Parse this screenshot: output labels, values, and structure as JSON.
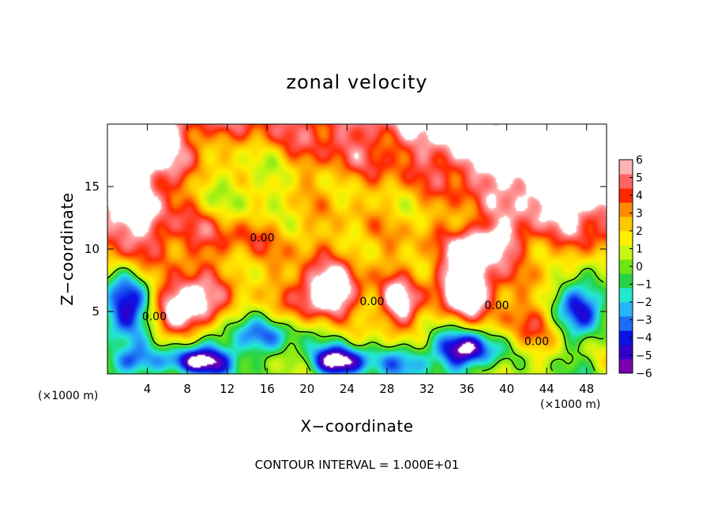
{
  "chart_data": {
    "type": "heatmap",
    "title": "zonal velocity",
    "xlabel": "X−coordinate",
    "ylabel": "Z−coordinate",
    "x_unit_left": "(×1000 m)",
    "x_unit_right": "(×1000 m)",
    "footnote": "CONTOUR INTERVAL = 1.000E+01",
    "xlim": [
      0,
      50
    ],
    "ylim": [
      0,
      20
    ],
    "x_ticks": [
      4,
      8,
      12,
      16,
      20,
      24,
      28,
      32,
      36,
      40,
      44,
      48
    ],
    "x_tick_labels": [
      "4",
      "8",
      "12",
      "16",
      "20",
      "24",
      "28",
      "32",
      "36",
      "40",
      "44",
      "48"
    ],
    "y_ticks": [
      5,
      10,
      15
    ],
    "y_tick_labels": [
      "5",
      "10",
      "15"
    ],
    "colorbar": {
      "min": -6,
      "max": 6,
      "ticks": [
        6,
        5,
        4,
        3,
        2,
        1,
        0,
        -1,
        -2,
        -3,
        -4,
        -5,
        -6
      ],
      "tick_labels": [
        "6",
        "5",
        "4",
        "3",
        "2",
        "1",
        "0",
        "−1",
        "−2",
        "−3",
        "−4",
        "−5",
        "−6"
      ],
      "colors": [
        "#7a00b0",
        "#3000c8",
        "#0a14e6",
        "#1e6ef5",
        "#28b4f5",
        "#23e8d2",
        "#28d246",
        "#6ee614",
        "#c8f514",
        "#fff000",
        "#ffc800",
        "#ff8c00",
        "#ff2800",
        "#ff6464",
        "#ffb4b4"
      ]
    },
    "contour_labels": [
      "0.00",
      "0.00",
      "0.00",
      "0.00",
      "0.00"
    ],
    "blobs": [
      {
        "x": 2,
        "y": 17.5,
        "sx": 5,
        "sy": 3,
        "v": 4
      },
      {
        "x": 2,
        "y": 13,
        "sx": 4,
        "sy": 3,
        "v": 4
      },
      {
        "x": 46,
        "y": 15,
        "sx": 7,
        "sy": 3.5,
        "v": 5
      },
      {
        "x": 48,
        "y": 19,
        "sx": 6,
        "sy": 2,
        "v": 4
      },
      {
        "x": 37,
        "y": 18,
        "sx": 5,
        "sy": 3,
        "v": 2
      },
      {
        "x": 14,
        "y": 16,
        "sx": 6,
        "sy": 4,
        "v": -3
      },
      {
        "x": 26,
        "y": 14,
        "sx": 8,
        "sy": 3,
        "v": -1.5
      },
      {
        "x": 10,
        "y": 11,
        "sx": 6,
        "sy": 2,
        "v": 2
      },
      {
        "x": 38,
        "y": 10.5,
        "sx": 3,
        "sy": 1.5,
        "v": 5
      },
      {
        "x": 2,
        "y": 5.5,
        "sx": 3,
        "sy": 2.5,
        "v": -7
      },
      {
        "x": 8,
        "y": 5.5,
        "sx": 3.5,
        "sy": 2,
        "v": 7
      },
      {
        "x": 22,
        "y": 6.5,
        "sx": 3,
        "sy": 2,
        "v": 7
      },
      {
        "x": 29,
        "y": 5.5,
        "sx": 2,
        "sy": 2,
        "v": 5
      },
      {
        "x": 36,
        "y": 7,
        "sx": 3,
        "sy": 2.5,
        "v": 7
      },
      {
        "x": 47.5,
        "y": 5.5,
        "sx": 2.5,
        "sy": 2.5,
        "v": -7
      },
      {
        "x": 15,
        "y": 3,
        "sx": 5,
        "sy": 1.5,
        "v": -4
      },
      {
        "x": 9,
        "y": 1,
        "sx": 3.5,
        "sy": 1.2,
        "v": -7
      },
      {
        "x": 23,
        "y": 1,
        "sx": 3,
        "sy": 1.2,
        "v": -7
      },
      {
        "x": 36,
        "y": 2,
        "sx": 3,
        "sy": 1.5,
        "v": -7
      },
      {
        "x": 30,
        "y": 1,
        "sx": 3,
        "sy": 1.5,
        "v": -4
      },
      {
        "x": 43,
        "y": 4,
        "sx": 4,
        "sy": 2,
        "v": 2
      },
      {
        "x": 2,
        "y": 1,
        "sx": 2.5,
        "sy": 1.2,
        "v": -4
      }
    ]
  }
}
